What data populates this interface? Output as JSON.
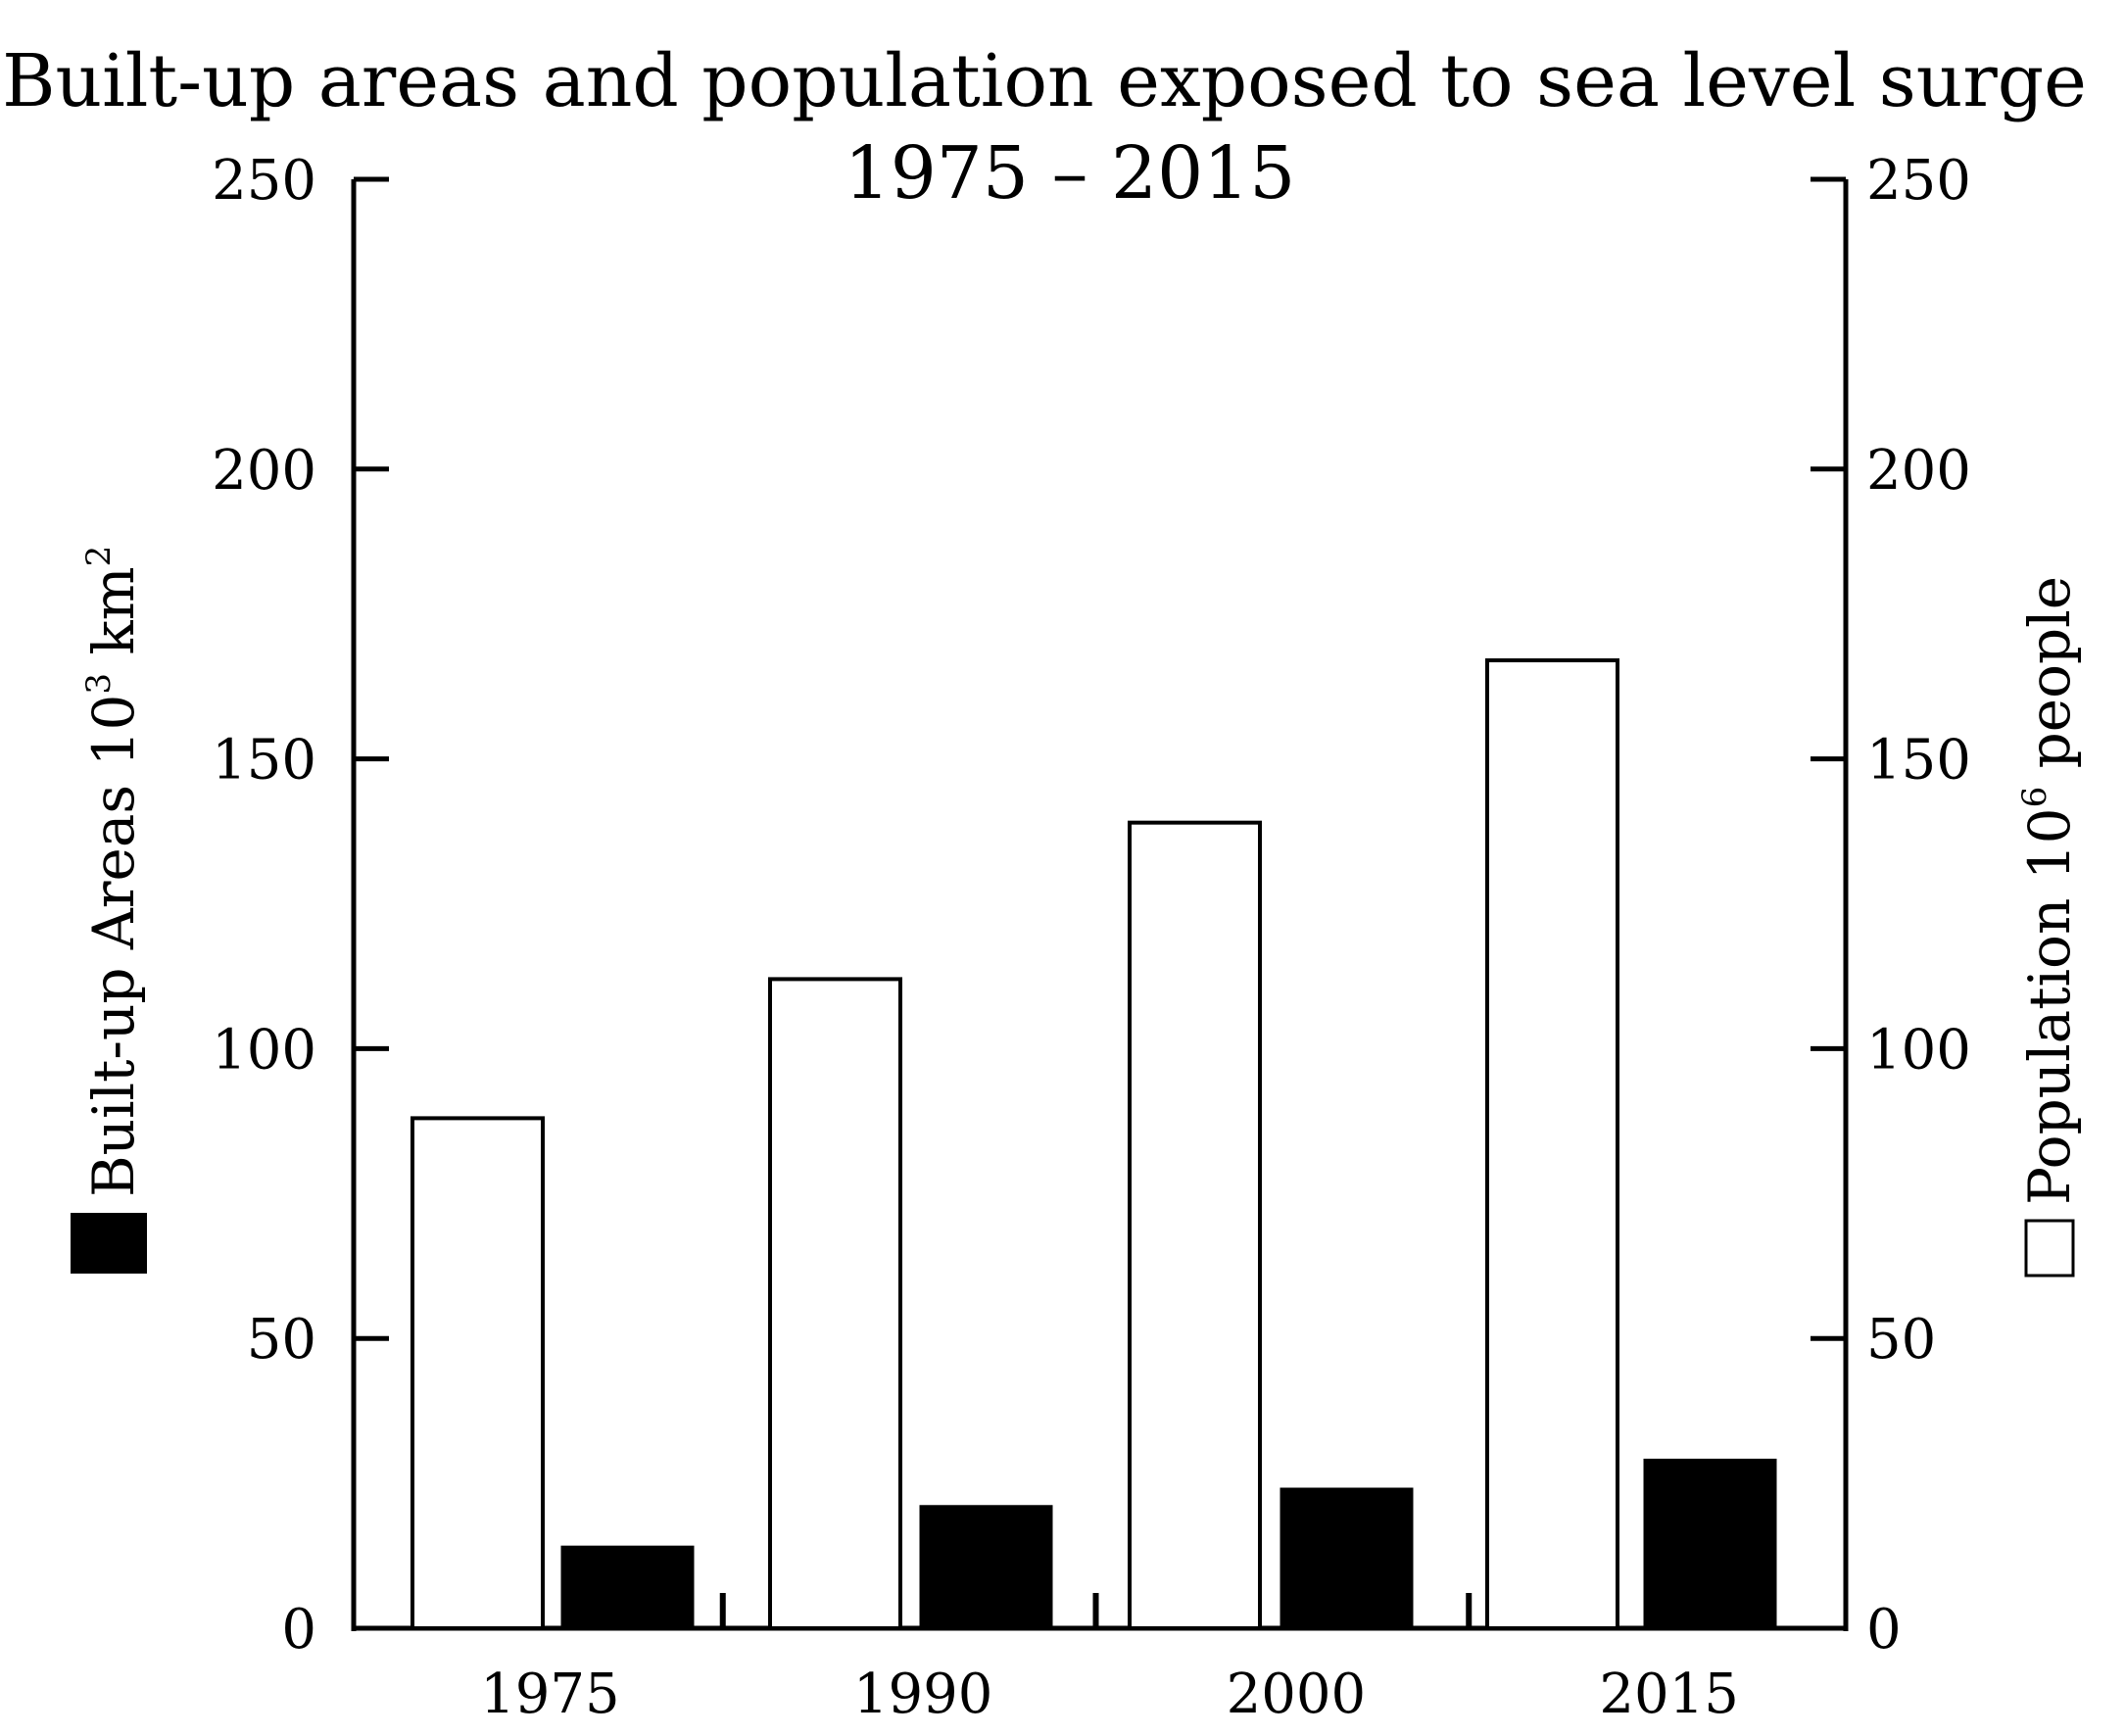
{
  "chart_data": {
    "type": "bar",
    "title": "Built-up areas and population exposed to sea level surge",
    "subtitle": "1975 – 2015",
    "categories": [
      "1975",
      "1990",
      "2000",
      "2015"
    ],
    "series": [
      {
        "name": "Population 10^6 people",
        "axis": "right",
        "fill": "#ffffff",
        "values": [
          88,
          112,
          139,
          167
        ]
      },
      {
        "name": "Built-up Areas 10^3 km^2",
        "axis": "left",
        "fill": "#000000",
        "values": [
          14,
          21,
          24,
          29
        ]
      }
    ],
    "y_left": {
      "label_main": "Built-up Areas 10",
      "label_sup": "3",
      "label_unit": " km",
      "label_unit_sup": "2",
      "ylim": [
        0,
        250
      ],
      "ticks": [
        "0",
        "50",
        "100",
        "150",
        "200",
        "250"
      ]
    },
    "y_right": {
      "label_main": "Population 10",
      "label_sup": "6",
      "label_unit": " people",
      "ylim": [
        0,
        250
      ],
      "ticks": [
        "0",
        "50",
        "100",
        "150",
        "200",
        "250"
      ]
    },
    "xlabel": "",
    "grid": false
  }
}
